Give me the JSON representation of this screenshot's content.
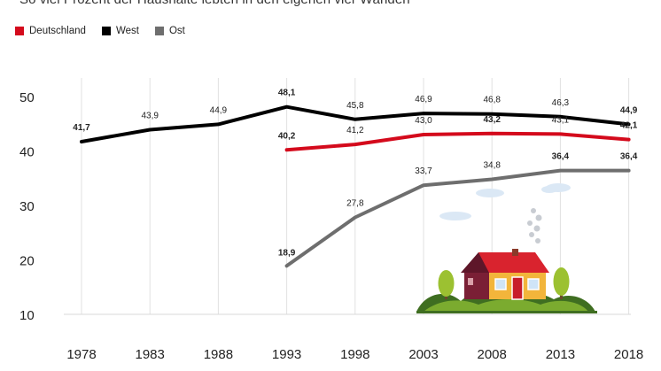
{
  "header": {
    "title": "So viel Prozent der Haushalte lebten in den eigenen vier Wänden"
  },
  "chart_data": {
    "type": "line",
    "title": "So viel Prozent der Haushalte lebten in den eigenen vier Wänden",
    "xlabel": "",
    "ylabel": "",
    "ylim": [
      10,
      52
    ],
    "yticks": [
      "10",
      "20",
      "30",
      "40",
      "50"
    ],
    "categories": [
      "1978",
      "1983",
      "1988",
      "1993",
      "1998",
      "2003",
      "2008",
      "2013",
      "2018"
    ],
    "grid": "vertical",
    "legend_position": "top-left",
    "series": [
      {
        "name": "Deutschland",
        "color": "#d40a1c",
        "values": [
          null,
          null,
          null,
          40.2,
          41.2,
          43.0,
          43.2,
          43.1,
          42.1
        ],
        "labels": [
          null,
          null,
          null,
          "40,2",
          "41,2",
          "43,0",
          "43,2",
          "43,1",
          "42,1"
        ],
        "bold": [
          false,
          false,
          false,
          true,
          false,
          false,
          true,
          false,
          true
        ]
      },
      {
        "name": "West",
        "color": "#000000",
        "values": [
          41.7,
          43.9,
          44.9,
          48.1,
          45.8,
          46.9,
          46.8,
          46.3,
          44.9
        ],
        "labels": [
          "41,7",
          "43,9",
          "44,9",
          "48,1",
          "45,8",
          "46,9",
          "46,8",
          "46,3",
          "44,9"
        ],
        "bold": [
          true,
          false,
          false,
          true,
          false,
          false,
          false,
          false,
          true
        ]
      },
      {
        "name": "Ost",
        "color": "#6e6e6e",
        "values": [
          null,
          null,
          null,
          18.9,
          27.8,
          33.7,
          34.8,
          36.4,
          36.4
        ],
        "labels": [
          null,
          null,
          null,
          "18,9",
          "27,8",
          "33,7",
          "34,8",
          "36,4",
          "36,4"
        ],
        "bold": [
          false,
          false,
          false,
          true,
          false,
          false,
          false,
          true,
          true
        ]
      }
    ]
  }
}
